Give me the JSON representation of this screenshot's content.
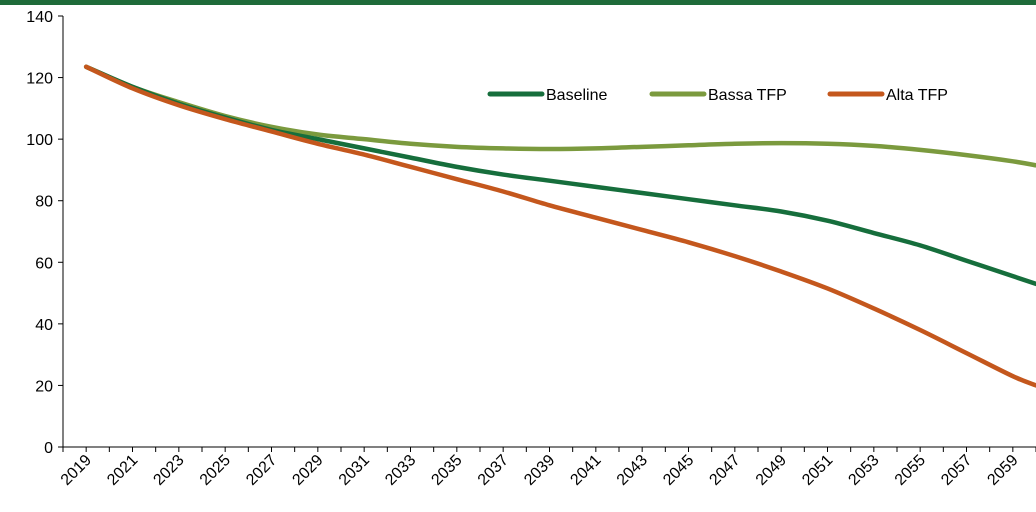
{
  "colors": {
    "top_rule": "#1f6b3a",
    "axis": "#000000"
  },
  "chart_data": {
    "type": "line",
    "title": "",
    "xlabel": "",
    "ylabel": "",
    "ylim": [
      0,
      140
    ],
    "yticks": [
      "0",
      "20",
      "40",
      "60",
      "80",
      "100",
      "120",
      "140"
    ],
    "grid": false,
    "legend_placement": "top-right",
    "x_tick_labels": [
      "2019",
      "2021",
      "2023",
      "2025",
      "2027",
      "2029",
      "2031",
      "2033",
      "2035",
      "2037",
      "2039",
      "2041",
      "2043",
      "2045",
      "2047",
      "2049",
      "2051",
      "2053",
      "2055",
      "2057",
      "2059"
    ],
    "x": [
      2019,
      2021,
      2023,
      2025,
      2027,
      2029,
      2031,
      2033,
      2035,
      2037,
      2039,
      2041,
      2043,
      2045,
      2047,
      2049,
      2051,
      2053,
      2055,
      2057,
      2059,
      2060
    ],
    "series": [
      {
        "name": "Baseline",
        "color": "#166e3c",
        "values": [
          123.5,
          117,
          111.5,
          107,
          103,
          100,
          97,
          94,
          91,
          88.5,
          86.5,
          84.5,
          82.5,
          80.5,
          78.5,
          76.5,
          73.5,
          69.5,
          65.5,
          60.5,
          55.5,
          53
        ]
      },
      {
        "name": "Bassa TFP",
        "color": "#7b9a3e",
        "values": [
          123.5,
          117,
          112,
          107.5,
          104,
          101.5,
          100,
          98.5,
          97.5,
          97,
          96.8,
          97,
          97.5,
          98,
          98.5,
          98.7,
          98.5,
          97.8,
          96.5,
          94.8,
          92.8,
          91.5
        ]
      },
      {
        "name": "Alta TFP",
        "color": "#c4571d",
        "values": [
          123.5,
          116.5,
          111,
          106.5,
          102.5,
          98.5,
          95,
          91,
          87,
          83,
          78.5,
          74.5,
          70.5,
          66.5,
          62,
          57,
          51.5,
          45,
          38,
          30.5,
          23,
          20
        ]
      }
    ]
  }
}
